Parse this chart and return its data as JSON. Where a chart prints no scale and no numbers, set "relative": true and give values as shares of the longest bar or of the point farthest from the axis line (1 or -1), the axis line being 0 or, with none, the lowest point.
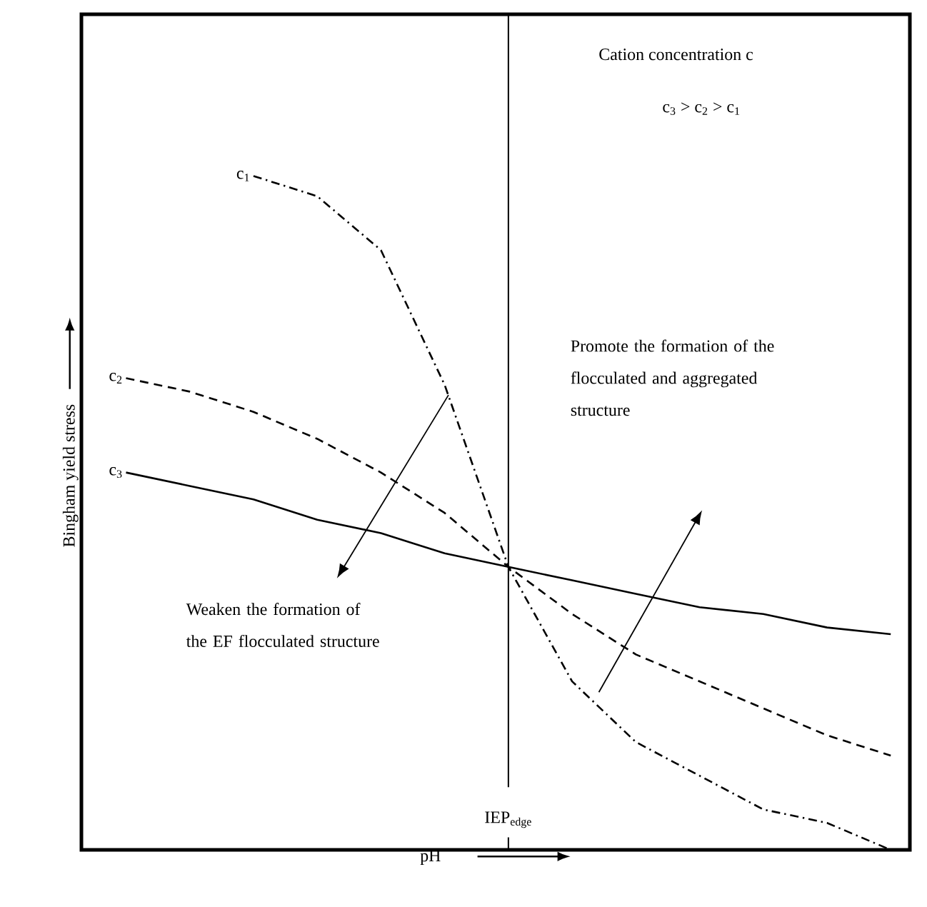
{
  "chart_data": {
    "type": "line",
    "relative": true,
    "xlabel": "pH",
    "ylabel": "Bingham yield stress",
    "categories": [
      null,
      null,
      null,
      null,
      null,
      null,
      null,
      null,
      null,
      null,
      null,
      null,
      null
    ],
    "series": [
      {
        "name": "c$_{1}$",
        "color": "#000000",
        "line_style": "dashdot",
        "values": [
          null,
          null,
          1.0,
          0.97,
          0.89,
          0.69,
          0.42,
          0.25,
          0.16,
          0.11,
          0.06,
          0.04,
          0.0
        ]
      },
      {
        "name": "c$_{2}$",
        "color": "#000000",
        "line_style": "dashed",
        "values": [
          0.7,
          0.68,
          0.65,
          0.61,
          0.56,
          0.5,
          0.42,
          0.35,
          0.29,
          0.25,
          0.21,
          0.17,
          0.14
        ]
      },
      {
        "name": "c$_{3}$",
        "color": "#000000",
        "line_style": "solid",
        "values": [
          0.56,
          0.54,
          0.52,
          0.49,
          0.47,
          0.44,
          0.42,
          0.4,
          0.38,
          0.36,
          0.35,
          0.33,
          0.32
        ]
      }
    ],
    "annotations": [
      "Cation concentration c",
      "c$_{3}$ > c$_{2}$ > c$_{1}$",
      "Weaken the formation of the EF flocculated structure",
      "Promote the formation of the flocculated and aggregated structure",
      "IEP$_{edge}$"
    ]
  }
}
